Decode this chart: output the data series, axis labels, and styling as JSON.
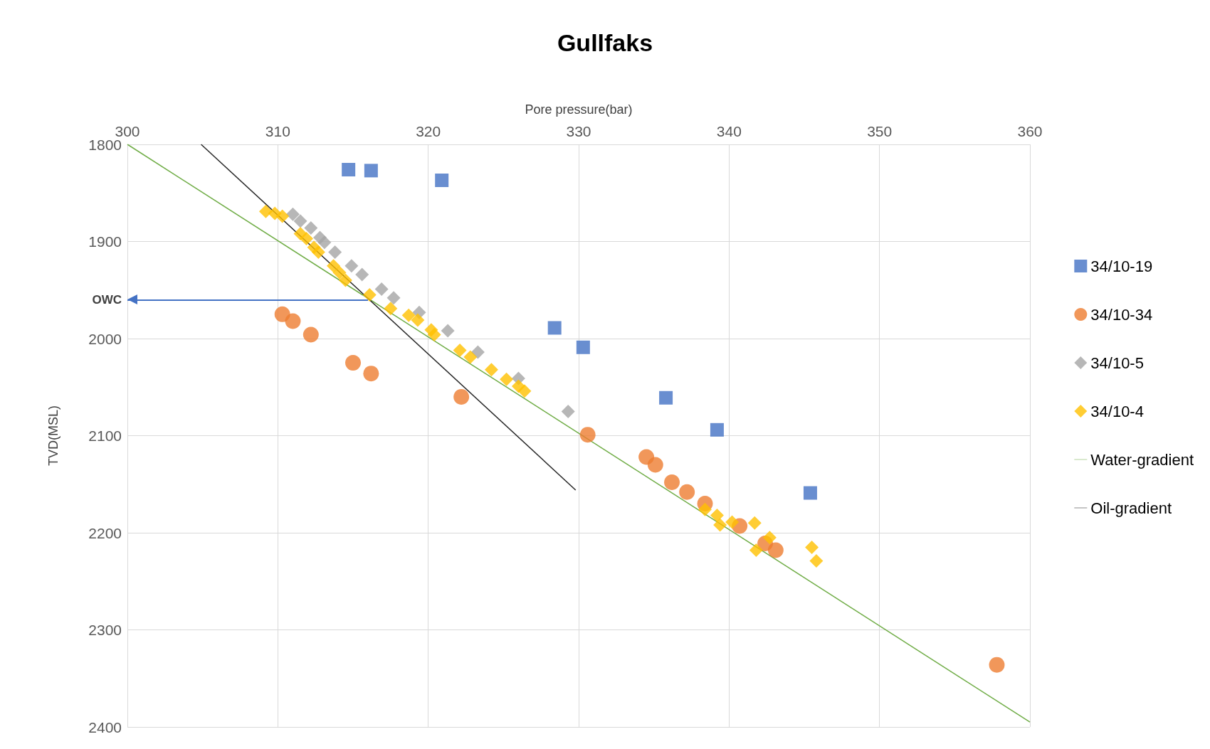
{
  "chart_data": {
    "type": "scatter",
    "title": "Gullfaks",
    "xlabel": "Pore pressure(bar)",
    "ylabel": "TVD(MSL)",
    "xlim": [
      300,
      360
    ],
    "xticks": [
      300,
      310,
      320,
      330,
      340,
      350,
      360
    ],
    "ylim": [
      2400,
      1800
    ],
    "yticks": [
      1800,
      1900,
      2000,
      2100,
      2200,
      2300,
      2400
    ],
    "grid": true,
    "legend": "right",
    "ref_lines": [
      {
        "axis": "y",
        "value": 1960,
        "label": "OWC",
        "color": "#4472c4"
      }
    ],
    "series": [
      {
        "name": "34/10-19",
        "color": "#4472c4",
        "marker": "square",
        "x": [
          314.7,
          316.2,
          320.9,
          328.4,
          330.3,
          335.8,
          339.2,
          345.4
        ],
        "values": [
          1826,
          1827,
          1837,
          1989,
          2009,
          2061,
          2094,
          2159
        ]
      },
      {
        "name": "34/10-34",
        "color": "#ed7d31",
        "marker": "circle",
        "x": [
          310.3,
          311.0,
          312.2,
          315.0,
          316.2,
          322.2,
          330.6,
          334.5,
          335.1,
          336.2,
          337.2,
          338.4,
          340.7,
          342.4,
          343.1,
          357.8
        ],
        "values": [
          1975,
          1982,
          1996,
          2025,
          2036,
          2060,
          2099,
          2122,
          2130,
          2148,
          2158,
          2170,
          2193,
          2211,
          2218,
          2336
        ]
      },
      {
        "name": "34/10-5",
        "color": "#a5a5a5",
        "marker": "diamond",
        "x": [
          311.0,
          311.5,
          312.2,
          312.8,
          313.1,
          313.8,
          314.9,
          315.6,
          316.9,
          317.7,
          319.4,
          321.3,
          323.3,
          326.0,
          329.3
        ],
        "values": [
          1872,
          1879,
          1886,
          1896,
          1901,
          1911,
          1925,
          1934,
          1949,
          1958,
          1973,
          1992,
          2014,
          2041,
          2075
        ]
      },
      {
        "name": "34/10-4",
        "color": "#ffc000",
        "marker": "diamond",
        "x": [
          309.2,
          309.8,
          310.3,
          311.5,
          311.9,
          312.4,
          312.7,
          313.7,
          314.1,
          314.5,
          316.1,
          317.5,
          318.7,
          319.3,
          320.2,
          320.4,
          322.1,
          322.8,
          324.2,
          325.2,
          326.0,
          326.4,
          338.4,
          339.2,
          339.4,
          340.2,
          341.7,
          342.7,
          341.8,
          345.5,
          345.8
        ],
        "values": [
          1869,
          1871,
          1874,
          1892,
          1897,
          1906,
          1911,
          1925,
          1932,
          1940,
          1955,
          1969,
          1976,
          1981,
          1991,
          1996,
          2012,
          2019,
          2032,
          2042,
          2049,
          2054,
          2176,
          2182,
          2192,
          2189,
          2190,
          2205,
          2218,
          2215,
          2229
        ]
      },
      {
        "name": "Water-gradient",
        "type": "line",
        "color": "#70ad47",
        "marker": "none",
        "x": [
          300,
          360
        ],
        "values": [
          1800,
          2395
        ]
      },
      {
        "name": "Oil-gradient",
        "type": "line",
        "color": "#262626",
        "marker": "none",
        "x": [
          304.9,
          329.8
        ],
        "values": [
          1800,
          2156
        ]
      }
    ]
  }
}
